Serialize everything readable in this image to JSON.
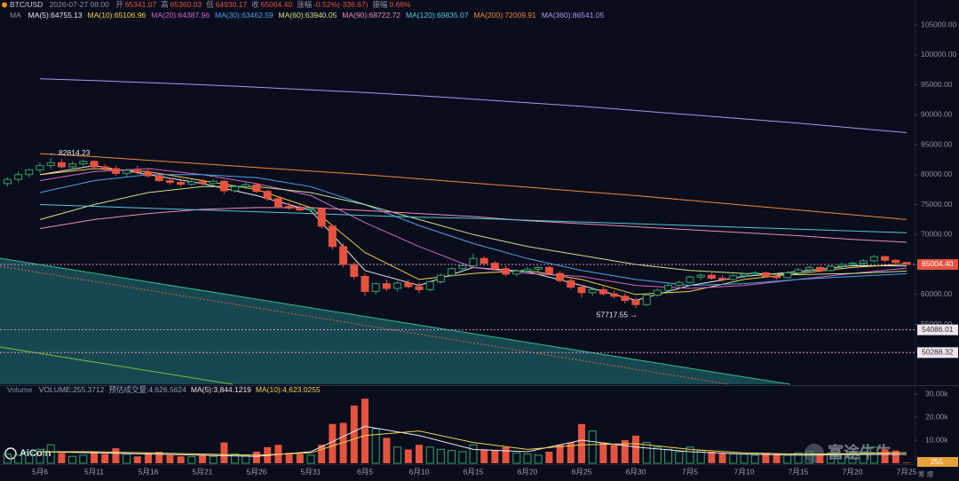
{
  "chart_data": {
    "type": "candlestick",
    "symbol": "BTC/USD",
    "datetime": "2026-07-27 08:00",
    "quote": [
      {
        "label": "开",
        "value": "65341.07"
      },
      {
        "label": "高",
        "value": "65360.03"
      },
      {
        "label": "低",
        "value": "64930.17"
      },
      {
        "label": "收",
        "value": "65004.40"
      },
      {
        "label": "涨幅",
        "value": "-0.52%(-336.67)"
      },
      {
        "label": "振幅",
        "value": "0.66%"
      }
    ],
    "categories": [
      null,
      null,
      null,
      "5月6",
      null,
      null,
      null,
      null,
      "5月11",
      null,
      null,
      null,
      null,
      "5月16",
      null,
      null,
      null,
      null,
      "5月21",
      null,
      null,
      null,
      null,
      "5月26",
      null,
      null,
      null,
      null,
      "5月31",
      null,
      null,
      null,
      null,
      "6月5",
      null,
      null,
      null,
      null,
      "6月10",
      null,
      null,
      null,
      null,
      "6月15",
      null,
      null,
      null,
      null,
      "6月20",
      null,
      null,
      null,
      null,
      "6月25",
      null,
      null,
      null,
      null,
      "6月30",
      null,
      null,
      null,
      null,
      "7月5",
      null,
      null,
      null,
      null,
      "7月10",
      null,
      null,
      null,
      null,
      "7月15",
      null,
      null,
      null,
      null,
      "7月20",
      null,
      null,
      null,
      null,
      "7月25"
    ],
    "up_color": "#2fa56c",
    "down_color": "#e5533f",
    "ohlc": [
      [
        78500,
        79500,
        78000,
        79200
      ],
      [
        79200,
        80500,
        78800,
        80000
      ],
      [
        80000,
        81000,
        79500,
        80800
      ],
      [
        80800,
        82000,
        80300,
        81500
      ],
      [
        81500,
        82814.23,
        81000,
        82000
      ],
      [
        82000,
        82600,
        81000,
        81300
      ],
      [
        81300,
        82200,
        80800,
        81800
      ],
      [
        81800,
        82500,
        81200,
        82200
      ],
      [
        82200,
        82400,
        81000,
        81300
      ],
      [
        81300,
        81800,
        80500,
        81000
      ],
      [
        81000,
        81500,
        79800,
        80200
      ],
      [
        80200,
        81000,
        79500,
        80700
      ],
      [
        80700,
        81500,
        80000,
        80400
      ],
      [
        80400,
        80900,
        79500,
        79800
      ],
      [
        79800,
        80200,
        78800,
        79000
      ],
      [
        79000,
        79500,
        78300,
        78700
      ],
      [
        78700,
        79000,
        78000,
        78400
      ],
      [
        78400,
        79200,
        78100,
        78800
      ],
      [
        78800,
        79300,
        78200,
        78500
      ],
      [
        78500,
        79200,
        78200,
        78900
      ],
      [
        78900,
        79100,
        76800,
        77300
      ],
      [
        77300,
        78300,
        77000,
        78000
      ],
      [
        78000,
        78800,
        77600,
        78300
      ],
      [
        78300,
        78600,
        77000,
        77200
      ],
      [
        77200,
        77500,
        75600,
        76000
      ],
      [
        76000,
        76300,
        74500,
        74700
      ],
      [
        74700,
        75300,
        74100,
        74400
      ],
      [
        74400,
        74900,
        73800,
        74100
      ],
      [
        74100,
        74600,
        73700,
        74300
      ],
      [
        74300,
        74400,
        71000,
        71400
      ],
      [
        71400,
        71600,
        67500,
        68000
      ],
      [
        68000,
        68500,
        64500,
        65000
      ],
      [
        65000,
        65300,
        62500,
        63000
      ],
      [
        63000,
        63500,
        59800,
        60500
      ],
      [
        60500,
        62000,
        60000,
        61800
      ],
      [
        61800,
        62500,
        60500,
        61000
      ],
      [
        61000,
        62200,
        60500,
        61900
      ],
      [
        61900,
        62500,
        61000,
        61300
      ],
      [
        61300,
        62000,
        60200,
        60800
      ],
      [
        60800,
        62300,
        60500,
        62100
      ],
      [
        62100,
        63500,
        61800,
        63200
      ],
      [
        63200,
        64500,
        63000,
        64300
      ],
      [
        64300,
        65200,
        63800,
        64800
      ],
      [
        64800,
        66800,
        64500,
        66000
      ],
      [
        66000,
        66400,
        64800,
        65200
      ],
      [
        65200,
        65600,
        64000,
        64300
      ],
      [
        64300,
        64800,
        63000,
        63400
      ],
      [
        63400,
        64200,
        63000,
        63900
      ],
      [
        63900,
        64600,
        63500,
        64200
      ],
      [
        64200,
        64800,
        63800,
        64500
      ],
      [
        64500,
        64800,
        63200,
        63500
      ],
      [
        63500,
        63900,
        62000,
        62300
      ],
      [
        62300,
        62700,
        60800,
        61200
      ],
      [
        61200,
        61600,
        59500,
        60300
      ],
      [
        60300,
        61200,
        59800,
        60800
      ],
      [
        60800,
        61300,
        59800,
        60100
      ],
      [
        60100,
        60600,
        59300,
        59700
      ],
      [
        59700,
        60200,
        58500,
        59000
      ],
      [
        59000,
        59500,
        57717.55,
        58300
      ],
      [
        58300,
        60200,
        58100,
        59900
      ],
      [
        59900,
        61000,
        59600,
        60700
      ],
      [
        60700,
        61800,
        60400,
        61500
      ],
      [
        61500,
        62300,
        61200,
        62000
      ],
      [
        62000,
        63200,
        61700,
        62900
      ],
      [
        62900,
        63500,
        62400,
        63200
      ],
      [
        63200,
        63600,
        62400,
        62700
      ],
      [
        62700,
        63200,
        62100,
        62500
      ],
      [
        62500,
        63400,
        62300,
        63100
      ],
      [
        63100,
        63600,
        62700,
        63400
      ],
      [
        63400,
        63900,
        63000,
        63600
      ],
      [
        63600,
        63800,
        62800,
        63000
      ],
      [
        63000,
        63500,
        62500,
        62800
      ],
      [
        62800,
        63800,
        62600,
        63600
      ],
      [
        63600,
        64400,
        63300,
        64100
      ],
      [
        64100,
        64800,
        63800,
        64500
      ],
      [
        64500,
        64700,
        63700,
        64000
      ],
      [
        64000,
        64900,
        63800,
        64700
      ],
      [
        64700,
        65300,
        64400,
        65000
      ],
      [
        65000,
        65500,
        64600,
        65200
      ],
      [
        65200,
        65900,
        64900,
        65600
      ],
      [
        65600,
        66600,
        65400,
        66300
      ],
      [
        66300,
        66500,
        65400,
        65700
      ],
      [
        65700,
        65900,
        65100,
        65341.07
      ],
      [
        65341.07,
        65360.03,
        64930.17,
        65004.4
      ]
    ],
    "ylim": [
      45000,
      109150
    ],
    "yticks": [
      {
        "value": 55000,
        "label": "55000.00"
      },
      {
        "value": 60000,
        "label": "60000.00"
      },
      {
        "value": 65000,
        "label": "65000.00"
      },
      {
        "value": 70000,
        "label": "70000.00"
      },
      {
        "value": 75000,
        "label": "75000.00"
      },
      {
        "value": 80000,
        "label": "80000.00"
      },
      {
        "value": 85000,
        "label": "85000.00"
      },
      {
        "value": 90000,
        "label": "90000.00"
      },
      {
        "value": 95000,
        "label": "95000.00"
      },
      {
        "value": 100000,
        "label": "100000.00"
      },
      {
        "value": 105000,
        "label": "105000.00"
      }
    ],
    "grid": false,
    "ma_title": "MA",
    "ma": [
      {
        "name": "MA(5):64755.13",
        "color": "#e8e8ee",
        "x": [
          "5月6",
          "5月11",
          "5月16",
          "5月21",
          "5月26",
          "5月31",
          "6月5",
          "6月10",
          "6月15",
          "6月20",
          "6月25",
          "6月30",
          "7月5",
          "7月10",
          "7月15",
          "7月20",
          "7月25"
        ],
        "values": [
          80000,
          81500,
          80000,
          78500,
          76500,
          74000,
          64000,
          61500,
          64500,
          63800,
          61500,
          59000,
          61500,
          63000,
          63800,
          64800,
          64750
        ]
      },
      {
        "name": "MA(10):65106.96",
        "color": "#f2d24b",
        "x": [
          "5月6",
          "5月11",
          "5月16",
          "5月21",
          "5月26",
          "5月31",
          "6月5",
          "6月10",
          "6月15",
          "6月20",
          "6月25",
          "6月30",
          "7月5",
          "7月10",
          "7月15",
          "7月20",
          "7月25"
        ],
        "values": [
          80000,
          81000,
          80500,
          79000,
          77500,
          74500,
          67000,
          62500,
          63500,
          64000,
          62500,
          60000,
          60500,
          62500,
          63500,
          64500,
          65100
        ]
      },
      {
        "name": "MA(20):64387.96",
        "color": "#d466c6",
        "x": [
          "5月6",
          "5月11",
          "5月16",
          "5月21",
          "5月26",
          "5月31",
          "6月5",
          "6月10",
          "6月15",
          "6月20",
          "6月25",
          "6月30",
          "7月5",
          "7月10",
          "7月15",
          "7月20",
          "7月25"
        ],
        "values": [
          79000,
          80500,
          81000,
          80000,
          78500,
          76500,
          72000,
          68000,
          64500,
          63500,
          63000,
          61500,
          61000,
          61500,
          62500,
          63500,
          64390
        ]
      },
      {
        "name": "MA(30):63462.59",
        "color": "#4aa3e8",
        "x": [
          "5月6",
          "5月11",
          "5月16",
          "5月21",
          "5月26",
          "5月31",
          "6月5",
          "6月10",
          "6月15",
          "6月20",
          "6月25",
          "6月30",
          "7月5",
          "7月10",
          "7月15",
          "7月20",
          "7月25"
        ],
        "values": [
          77000,
          79000,
          80000,
          80000,
          79500,
          78000,
          75000,
          71500,
          68500,
          66000,
          64000,
          62500,
          61500,
          61800,
          62500,
          63000,
          63460
        ]
      },
      {
        "name": "MA(60):63940.05",
        "color": "#c8e38c",
        "x": [
          "5月6",
          "5月11",
          "5月16",
          "5月21",
          "5月26",
          "5月31",
          "6月5",
          "6月10",
          "6月15",
          "6月20",
          "6月25",
          "6月30",
          "7月5",
          "7月10",
          "7月15",
          "7月20",
          "7月25"
        ],
        "values": [
          72500,
          75000,
          77000,
          78000,
          78000,
          77000,
          75000,
          72500,
          70000,
          68000,
          66500,
          65000,
          64000,
          63500,
          63300,
          63500,
          63900
        ]
      },
      {
        "name": "MA(90):68722.72",
        "color": "#e98fb4",
        "x": [
          "5月6",
          "5月11",
          "5月16",
          "5月21",
          "5月26",
          "5月31",
          "6月5",
          "6月10",
          "6月15",
          "6月20",
          "6月25",
          "6月30",
          "7月5",
          "7月10",
          "7月15",
          "7月20",
          "7月25"
        ],
        "values": [
          71000,
          72500,
          73500,
          74200,
          74500,
          74500,
          74000,
          73500,
          73000,
          72300,
          71800,
          71300,
          70800,
          70300,
          69800,
          69200,
          68700
        ]
      },
      {
        "name": "MA(120):69835.07",
        "color": "#59c6d6",
        "x": [
          "5月6",
          "5月11",
          "5月16",
          "5月21",
          "5月26",
          "5月31",
          "6月5",
          "6月10",
          "6月15",
          "6月20",
          "6月25",
          "6月30",
          "7月5",
          "7月10",
          "7月15",
          "7月20",
          "7月25"
        ],
        "values": [
          75000,
          74700,
          74400,
          74100,
          73800,
          73500,
          73200,
          72900,
          72700,
          72400,
          72100,
          71800,
          71500,
          71200,
          70900,
          70600,
          70300
        ]
      },
      {
        "name": "MA(200):72009.91",
        "color": "#ee8a3c",
        "x": [
          "5月6",
          "5月11",
          "5月16",
          "5月21",
          "5月26",
          "5月31",
          "6月5",
          "6月10",
          "6月15",
          "6月20",
          "6月25",
          "6月30",
          "7月5",
          "7月10",
          "7月15",
          "7月20",
          "7月25"
        ],
        "values": [
          83500,
          83000,
          82400,
          81800,
          81200,
          80600,
          80000,
          79300,
          78600,
          77900,
          77200,
          76500,
          75700,
          74900,
          74100,
          73300,
          72500
        ]
      },
      {
        "name": "MA(360):86541.05",
        "color": "#a39cf4",
        "x": [
          "5月6",
          "5月11",
          "5月16",
          "5月21",
          "5月26",
          "5月31",
          "6月5",
          "6月10",
          "6月15",
          "6月20",
          "6月25",
          "6月30",
          "7月5",
          "7月10",
          "7月15",
          "7月20",
          "7月25"
        ],
        "values": [
          96000,
          95700,
          95350,
          95000,
          94600,
          94150,
          93700,
          93200,
          92600,
          92000,
          91400,
          90700,
          90000,
          89300,
          88600,
          87800,
          87000
        ]
      }
    ],
    "levels": [
      {
        "value": 65004.4,
        "label": "65004.40",
        "color": "#e5533f"
      },
      {
        "value": 54086.01,
        "label": "54086.01",
        "color": "#efe4ef"
      },
      {
        "value": 50288.32,
        "label": "50288.32",
        "color": "#efe4ef"
      }
    ],
    "annotations": [
      "← 82814.23",
      "57717.55 →"
    ],
    "volume": {
      "title": "Volume",
      "legend": [
        "VOLUME:255.3712",
        "预估成交量:4,626.5624"
      ],
      "values": [
        4000,
        3500,
        5000,
        6000,
        8000,
        4500,
        3000,
        3500,
        5000,
        4000,
        6500,
        4000,
        3000,
        4500,
        5000,
        3500,
        3000,
        2800,
        3500,
        3000,
        9000,
        4000,
        3500,
        5000,
        7000,
        8000,
        4500,
        4000,
        3500,
        8000,
        17000,
        17500,
        25000,
        28000,
        15000,
        11000,
        7000,
        6000,
        8000,
        7000,
        6000,
        5500,
        5000,
        8000,
        6000,
        5500,
        7000,
        4500,
        4000,
        3500,
        5000,
        8000,
        9000,
        17000,
        14000,
        9000,
        8000,
        10000,
        12000,
        9000,
        7000,
        6000,
        5000,
        7000,
        5500,
        5000,
        4500,
        4000,
        4000,
        3500,
        4500,
        4000,
        3500,
        4500,
        5000,
        4000,
        4500,
        4000,
        4500,
        5000,
        7000,
        6000,
        5500,
        255.3712
      ],
      "ylim": [
        0,
        32700
      ],
      "yticks": [
        {
          "value": 10000,
          "label": "10.00k"
        },
        {
          "value": 20000,
          "label": "20.00k"
        },
        {
          "value": 30000,
          "label": "30.00k"
        }
      ],
      "ma": [
        {
          "name": "MA(5):3,844.1219",
          "color": "#e8e8ee",
          "x": [
            "5月6",
            "5月11",
            "5月16",
            "5月21",
            "5月26",
            "5月31",
            "6月5",
            "6月10",
            "6月15",
            "6月20",
            "6月25",
            "6月30",
            "7月5",
            "7月10",
            "7月15",
            "7月20",
            "7月25"
          ],
          "values": [
            5000,
            4500,
            4000,
            3500,
            3000,
            5000,
            16000,
            12000,
            6000,
            5000,
            10000,
            7000,
            5000,
            4000,
            3500,
            3800,
            3844
          ]
        },
        {
          "name": "MA(10):4,623.0255",
          "color": "#f2d24b",
          "x": [
            "5月6",
            "5月11",
            "5月16",
            "5月21",
            "5月26",
            "5月31",
            "6月5",
            "6月10",
            "6月15",
            "6月20",
            "6月25",
            "6月30",
            "7月5",
            "7月10",
            "7月15",
            "7月20",
            "7月25"
          ],
          "values": [
            5000,
            5000,
            4500,
            4000,
            3500,
            4500,
            12000,
            14000,
            9000,
            6000,
            8000,
            8500,
            6000,
            4500,
            4000,
            4200,
            4623
          ]
        }
      ],
      "current_tag": "255"
    }
  },
  "watermarks": [
    "AiCoin",
    "富途牛牛"
  ],
  "corner_text": "筹 爆"
}
